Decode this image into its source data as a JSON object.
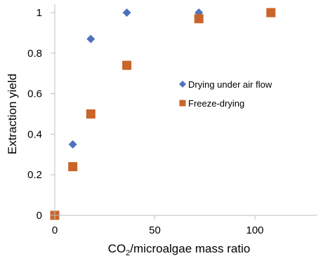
{
  "chart_data": {
    "type": "scatter",
    "xlabel": {
      "prefix": "CO",
      "subscript": "2",
      "suffix": "/microalgae mass ratio"
    },
    "ylabel": "Extraction yield",
    "xlim": [
      0,
      120
    ],
    "ylim": [
      0,
      1
    ],
    "xticks": [
      0,
      50,
      100
    ],
    "yticks": [
      0,
      0.2,
      0.4,
      0.6,
      0.8,
      1
    ],
    "grid": false,
    "legend_position": "center-right",
    "series": [
      {
        "name": "Drying under air flow",
        "marker": "diamond",
        "color": "#4F72BE",
        "x": [
          0,
          9,
          18,
          36,
          72
        ],
        "y": [
          0,
          0.35,
          0.87,
          1.0,
          1.0
        ]
      },
      {
        "name": "Freeze-drying",
        "marker": "square",
        "color": "#C8652A",
        "x": [
          0,
          9,
          18,
          36,
          72,
          108
        ],
        "y": [
          0,
          0.24,
          0.5,
          0.74,
          0.97,
          1.0
        ]
      }
    ]
  }
}
